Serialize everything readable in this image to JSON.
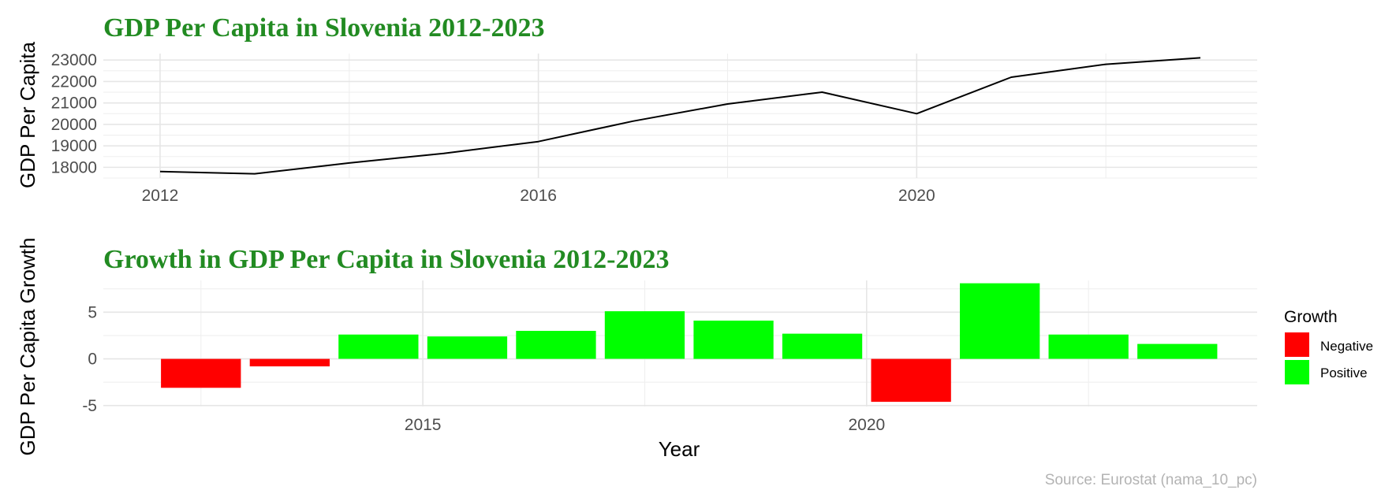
{
  "chart_data": [
    {
      "type": "line",
      "title": "GDP Per Capita in Slovenia 2012-2023",
      "ylabel": "GDP Per Capita",
      "xlabel": "",
      "x": [
        2012,
        2013,
        2014,
        2015,
        2016,
        2017,
        2018,
        2019,
        2020,
        2021,
        2022,
        2023
      ],
      "y": [
        17800,
        17700,
        18200,
        18650,
        19200,
        20150,
        20950,
        21500,
        20500,
        22200,
        22800,
        23100
      ],
      "xlim": [
        2011.4,
        2023.6
      ],
      "ylim": [
        17500,
        23300
      ],
      "x_ticks": [
        "2012",
        "2016",
        "2020"
      ],
      "y_ticks": [
        "18000",
        "19000",
        "20000",
        "21000",
        "22000",
        "23000"
      ],
      "line_color": "#000000",
      "grid": true
    },
    {
      "type": "bar",
      "title": "Growth in GDP Per Capita in Slovenia 2012-2023",
      "ylabel": "GDP Per Capita Growth",
      "xlabel": "Year",
      "x": [
        2012,
        2013,
        2014,
        2015,
        2016,
        2017,
        2018,
        2019,
        2020,
        2021,
        2022,
        2023
      ],
      "values": [
        -3.1,
        -0.8,
        2.6,
        2.4,
        3.0,
        5.1,
        4.1,
        2.7,
        -4.6,
        8.1,
        2.6,
        1.6
      ],
      "xlim": [
        2011.4,
        2024.4
      ],
      "ylim": [
        -5.1,
        8.4
      ],
      "x_ticks": [
        "2015",
        "2020"
      ],
      "y_ticks": [
        "-5",
        "0",
        "5"
      ],
      "grid": true,
      "legend": {
        "title": "Growth",
        "placement": "right",
        "entries": [
          {
            "label": "Negative",
            "color": "#FF0000"
          },
          {
            "label": "Positive",
            "color": "#00FF00"
          }
        ]
      }
    }
  ],
  "caption": "Source: Eurostat (nama_10_pc)",
  "colors": {
    "title": "#228B22",
    "negative": "#FF0000",
    "positive": "#00FF00",
    "grid": "#E6E6E6"
  }
}
